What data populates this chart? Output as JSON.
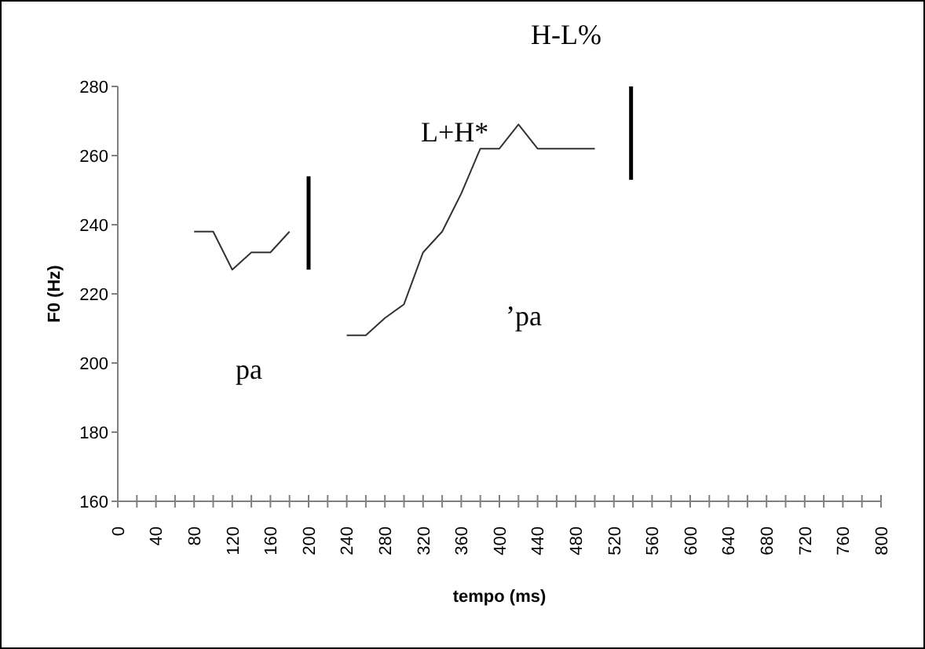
{
  "chart_data": {
    "type": "line",
    "xlabel": "tempo (ms)",
    "ylabel": "F0 (Hz)",
    "xlim": [
      0,
      800
    ],
    "xticks": [
      0,
      {
        "value": 20,
        "label": null
      },
      40,
      {
        "value": 60,
        "label": null
      },
      80,
      {
        "value": 100,
        "label": null
      },
      120,
      {
        "value": 140,
        "label": null
      },
      160,
      {
        "value": 180,
        "label": null
      },
      200,
      {
        "value": 220,
        "label": null
      },
      240,
      {
        "value": 260,
        "label": null
      },
      280,
      {
        "value": 300,
        "label": null
      },
      320,
      {
        "value": 340,
        "label": null
      },
      360,
      {
        "value": 380,
        "label": null
      },
      400,
      {
        "value": 420,
        "label": null
      },
      440,
      {
        "value": 460,
        "label": null
      },
      480,
      {
        "value": 500,
        "label": null
      },
      520,
      {
        "value": 540,
        "label": null
      },
      560,
      {
        "value": 580,
        "label": null
      },
      600,
      {
        "value": 620,
        "label": null
      },
      640,
      {
        "value": 660,
        "label": null
      },
      680,
      {
        "value": 700,
        "label": null
      },
      720,
      {
        "value": 740,
        "label": null
      },
      760,
      {
        "value": 780,
        "label": null
      },
      800
    ],
    "ylim": [
      160,
      280
    ],
    "yticks": [
      160,
      180,
      200,
      220,
      240,
      260,
      280
    ],
    "grid": false,
    "marker": "none",
    "line_style": "solid",
    "series": [
      {
        "color": "#333333",
        "x": [
          80,
          100,
          120,
          140,
          160,
          180
        ],
        "values": [
          238,
          238,
          227,
          232,
          232,
          238
        ]
      },
      {
        "color": "#333333",
        "x": [
          240,
          260,
          280,
          300,
          320,
          340,
          360,
          380,
          400,
          420,
          440,
          460,
          480,
          500
        ],
        "values": [
          208,
          208,
          213,
          217,
          232,
          238,
          249,
          262,
          262,
          269,
          262,
          262,
          262,
          262
        ]
      },
      {
        "color": "#000000",
        "x": [
          200,
          200
        ],
        "values": [
          227,
          254
        ]
      },
      {
        "color": "#000000",
        "x": [
          538,
          538
        ],
        "values": [
          253,
          280
        ]
      }
    ],
    "annotations": [
      "pa",
      "’pa",
      "L+H*",
      "H-L%"
    ]
  }
}
